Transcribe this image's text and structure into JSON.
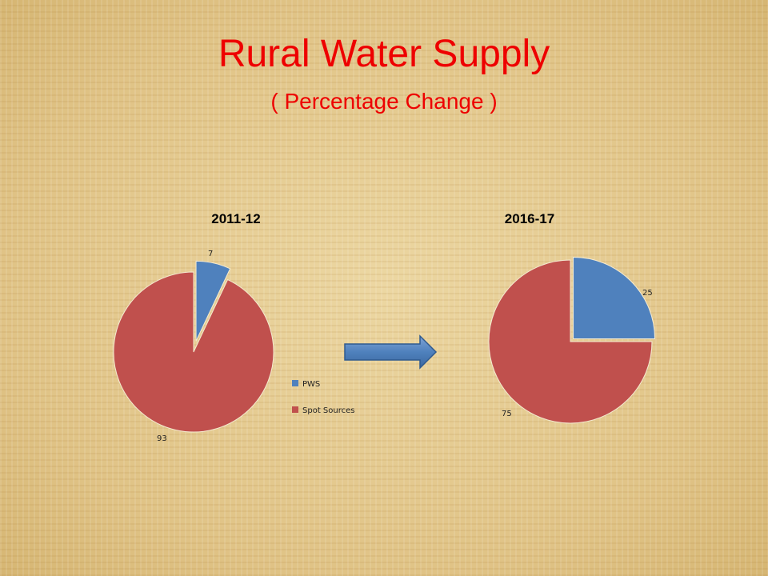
{
  "slide": {
    "title": "Rural Water Supply",
    "subtitle": "( Percentage Change )",
    "title_color": "#ee0000"
  },
  "legend": {
    "items": [
      {
        "label": "PWS",
        "color": "#4f81bd"
      },
      {
        "label": "Spot Sources",
        "color": "#c0504d"
      }
    ]
  },
  "arrow": {
    "icon": "right-arrow-icon",
    "color": "#4f81bd"
  },
  "chart_data": [
    {
      "type": "pie",
      "title": "2011-12",
      "categories": [
        "PWS",
        "Spot Sources"
      ],
      "values": [
        7,
        93
      ],
      "data_labels": [
        "7",
        "93"
      ],
      "colors": [
        "#4f81bd",
        "#c0504d"
      ],
      "exploded": "PWS",
      "legend": "right"
    },
    {
      "type": "pie",
      "title": "2016-17",
      "categories": [
        "PWS",
        "Spot Sources"
      ],
      "values": [
        25,
        75
      ],
      "data_labels": [
        "25",
        "75"
      ],
      "colors": [
        "#4f81bd",
        "#c0504d"
      ],
      "exploded": "PWS"
    }
  ]
}
